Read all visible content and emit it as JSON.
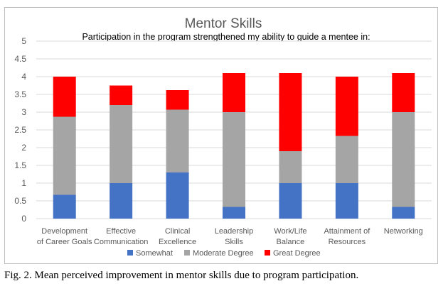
{
  "chart_data": {
    "type": "bar",
    "stacked": true,
    "title": "Mentor Skills",
    "subtitle": "Participation in the program strengthened my ability to guide a mentee in:",
    "categories": [
      [
        "Development",
        "of Career Goals"
      ],
      [
        "Effective",
        "Communication"
      ],
      [
        "Clinical",
        "Excellence"
      ],
      [
        "Leadership",
        "Skills"
      ],
      [
        "Work/Life",
        "Balance"
      ],
      [
        "Attainment of",
        "Resources"
      ],
      [
        "Networking"
      ]
    ],
    "series": [
      {
        "name": "Somewhat",
        "color": "#4472C4",
        "values": [
          0.67,
          1.0,
          1.3,
          0.33,
          1.0,
          1.0,
          0.33
        ]
      },
      {
        "name": "Moderate Degree",
        "color": "#A5A5A5",
        "values": [
          2.2,
          2.2,
          1.77,
          2.67,
          0.9,
          1.33,
          2.67
        ]
      },
      {
        "name": "Great Degree",
        "color": "#FF0000",
        "values": [
          1.13,
          0.55,
          0.55,
          1.1,
          2.2,
          1.67,
          1.1
        ]
      }
    ],
    "yticks": [
      "0",
      "0.5",
      "1",
      "1.5",
      "2",
      "2.5",
      "3",
      "3.5",
      "4",
      "4.5",
      "5"
    ],
    "ylim": [
      0,
      5
    ],
    "grid": true,
    "legend_position": "bottom"
  },
  "caption": "Fig. 2. Mean perceived improvement in mentor skills due to program participation."
}
